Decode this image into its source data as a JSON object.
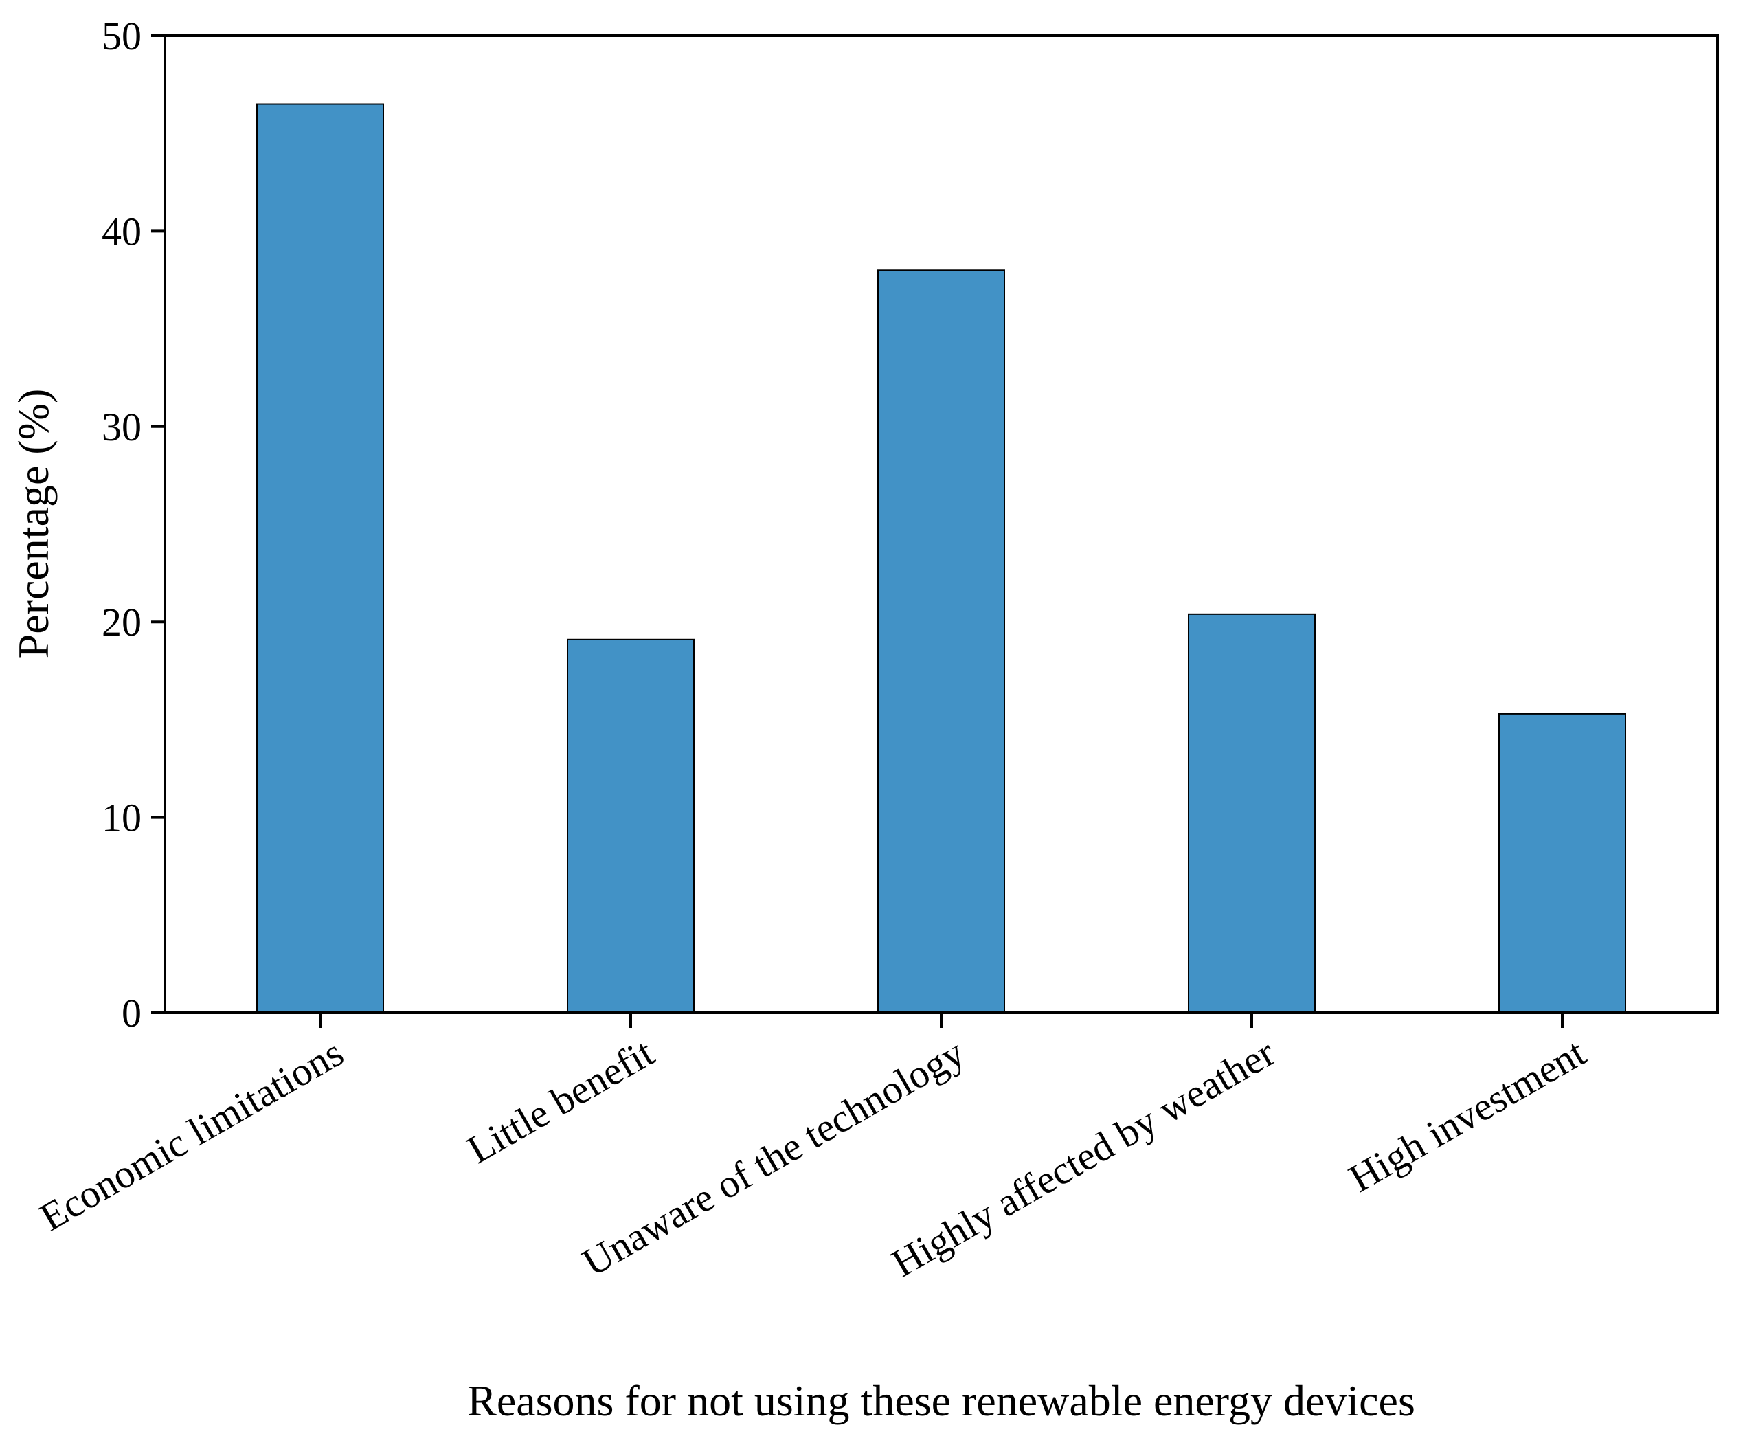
{
  "chart_data": {
    "type": "bar",
    "title": "",
    "xlabel": "Reasons for not using these renewable energy devices",
    "ylabel": "Percentage (%)",
    "ylim": [
      0,
      50
    ],
    "yticks": [
      0,
      10,
      20,
      30,
      40,
      50
    ],
    "categories": [
      "Economic limitations",
      "Little benefit",
      "Unaware of the technology",
      "Highly affected by weather",
      "High investment"
    ],
    "values": [
      46.5,
      19.1,
      38.0,
      20.4,
      15.3
    ],
    "bar_color": "#4292C6",
    "bar_edge_color": "#000000",
    "grid": false,
    "legend": "none"
  }
}
